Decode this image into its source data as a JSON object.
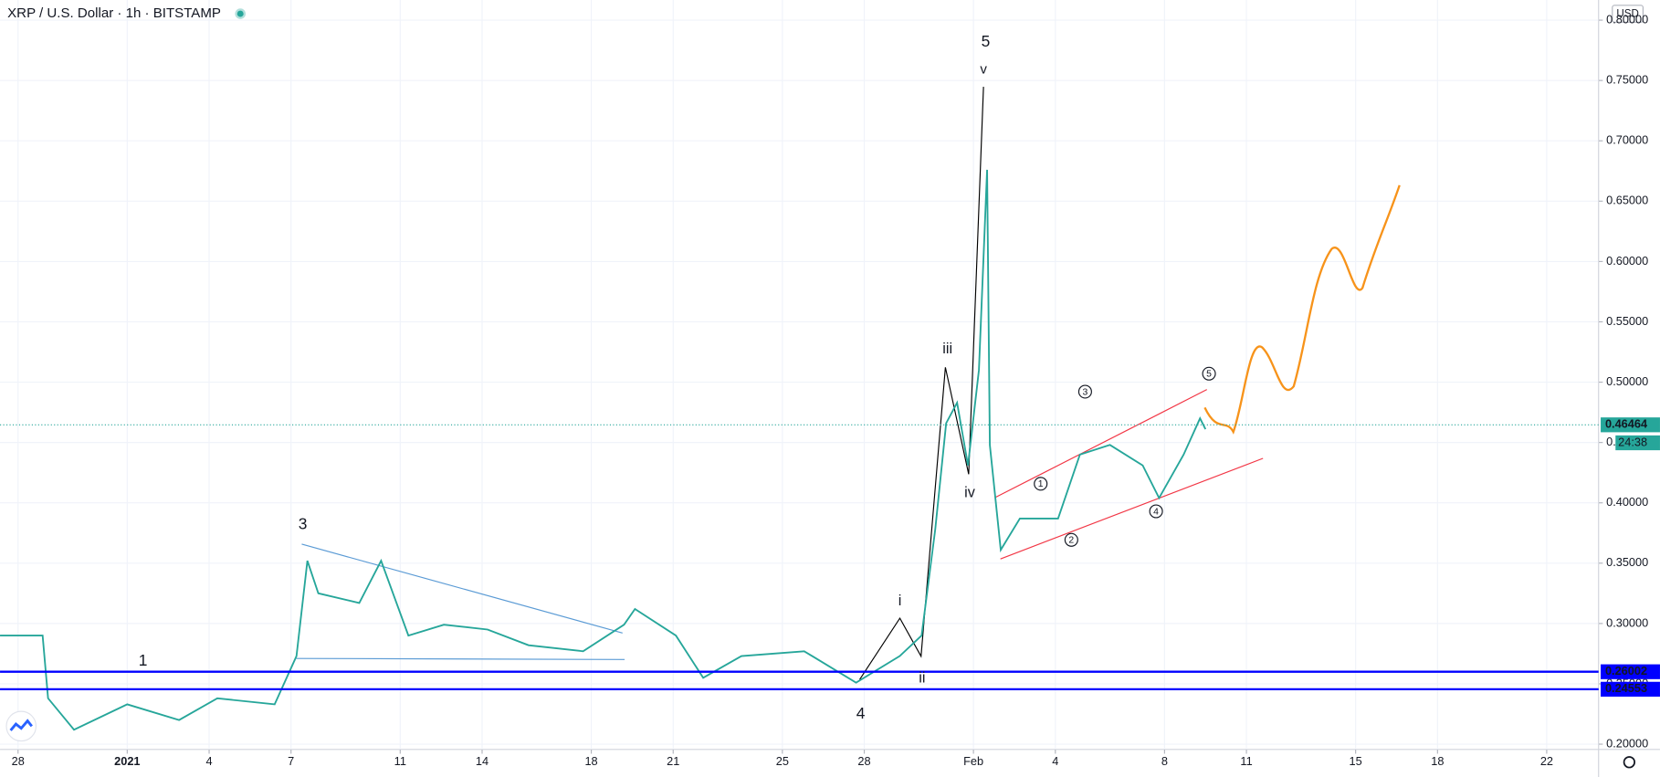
{
  "chart_data": {
    "type": "line",
    "title": "XRP / U.S. Dollar · 1h · BITSTAMP",
    "currency": "USD",
    "x": [
      -0.66,
      0.9,
      1.1,
      2.05,
      4,
      5.9,
      7.3,
      9.4,
      10.2,
      10.6,
      11,
      12.5,
      13.3,
      14.3,
      15.6,
      17.2,
      18.7,
      20.7,
      22.2,
      22.6,
      24.1,
      25.1,
      26.5,
      28.8,
      30.7,
      32.3,
      33.1,
      33.6,
      34,
      34.4,
      34.8,
      35.2,
      35.5,
      35.6,
      36,
      36.7,
      38.1,
      38.9,
      40,
      41.2,
      41.8,
      42.7,
      43.3,
      43.5
    ],
    "values": [
      0.29,
      0.29,
      0.238,
      0.212,
      0.233,
      0.22,
      0.238,
      0.233,
      0.273,
      0.352,
      0.325,
      0.317,
      0.352,
      0.29,
      0.299,
      0.295,
      0.282,
      0.277,
      0.299,
      0.312,
      0.29,
      0.255,
      0.273,
      0.277,
      0.251,
      0.273,
      0.29,
      0.378,
      0.466,
      0.483,
      0.431,
      0.51,
      0.676,
      0.448,
      0.361,
      0.387,
      0.387,
      0.44,
      0.448,
      0.431,
      0.404,
      0.44,
      0.47,
      0.461
    ],
    "color": "#26a69a",
    "xlim": [
      -0.66,
      57.9
    ],
    "ylim": [
      0.1956,
      0.8167
    ],
    "xticks": [
      {
        "value": 0,
        "label": "28"
      },
      {
        "value": 4,
        "label": "2021"
      },
      {
        "value": 7,
        "label": "4"
      },
      {
        "value": 10,
        "label": "7"
      },
      {
        "value": 14,
        "label": "11"
      },
      {
        "value": 17,
        "label": "14"
      },
      {
        "value": 21,
        "label": "18"
      },
      {
        "value": 24,
        "label": "21"
      },
      {
        "value": 28,
        "label": "25"
      },
      {
        "value": 31,
        "label": "28"
      },
      {
        "value": 35,
        "label": "Feb"
      },
      {
        "value": 38,
        "label": "4"
      },
      {
        "value": 42,
        "label": "8"
      },
      {
        "value": 45,
        "label": "11"
      },
      {
        "value": 49,
        "label": "15"
      },
      {
        "value": 52,
        "label": "18"
      },
      {
        "value": 56,
        "label": "22"
      }
    ],
    "yticks": [
      {
        "value": 0.2,
        "label": "0.20000"
      },
      {
        "value": 0.25,
        "label": "0.25000"
      },
      {
        "value": 0.3,
        "label": "0.30000"
      },
      {
        "value": 0.35,
        "label": "0.35000"
      },
      {
        "value": 0.4,
        "label": "0.40000"
      },
      {
        "value": 0.45,
        "label": "0.45000"
      },
      {
        "value": 0.5,
        "label": "0.50000"
      },
      {
        "value": 0.55,
        "label": "0.55000"
      },
      {
        "value": 0.6,
        "label": "0.60000"
      },
      {
        "value": 0.65,
        "label": "0.65000"
      },
      {
        "value": 0.7,
        "label": "0.70000"
      },
      {
        "value": 0.75,
        "label": "0.75000"
      },
      {
        "value": 0.8,
        "label": "0.80000"
      }
    ],
    "last_price": 0.46464,
    "countdown": "24:38",
    "price_lines": [
      {
        "value": 0.26002,
        "color": "#0000ff"
      },
      {
        "value": 0.24553,
        "color": "#0000ff"
      }
    ],
    "wave_labels": [
      "1",
      "3",
      "4",
      "5",
      "i",
      "ii",
      "iii",
      "iv",
      "v"
    ],
    "circled_labels": [
      "1",
      "2",
      "3",
      "4",
      "5"
    ]
  }
}
